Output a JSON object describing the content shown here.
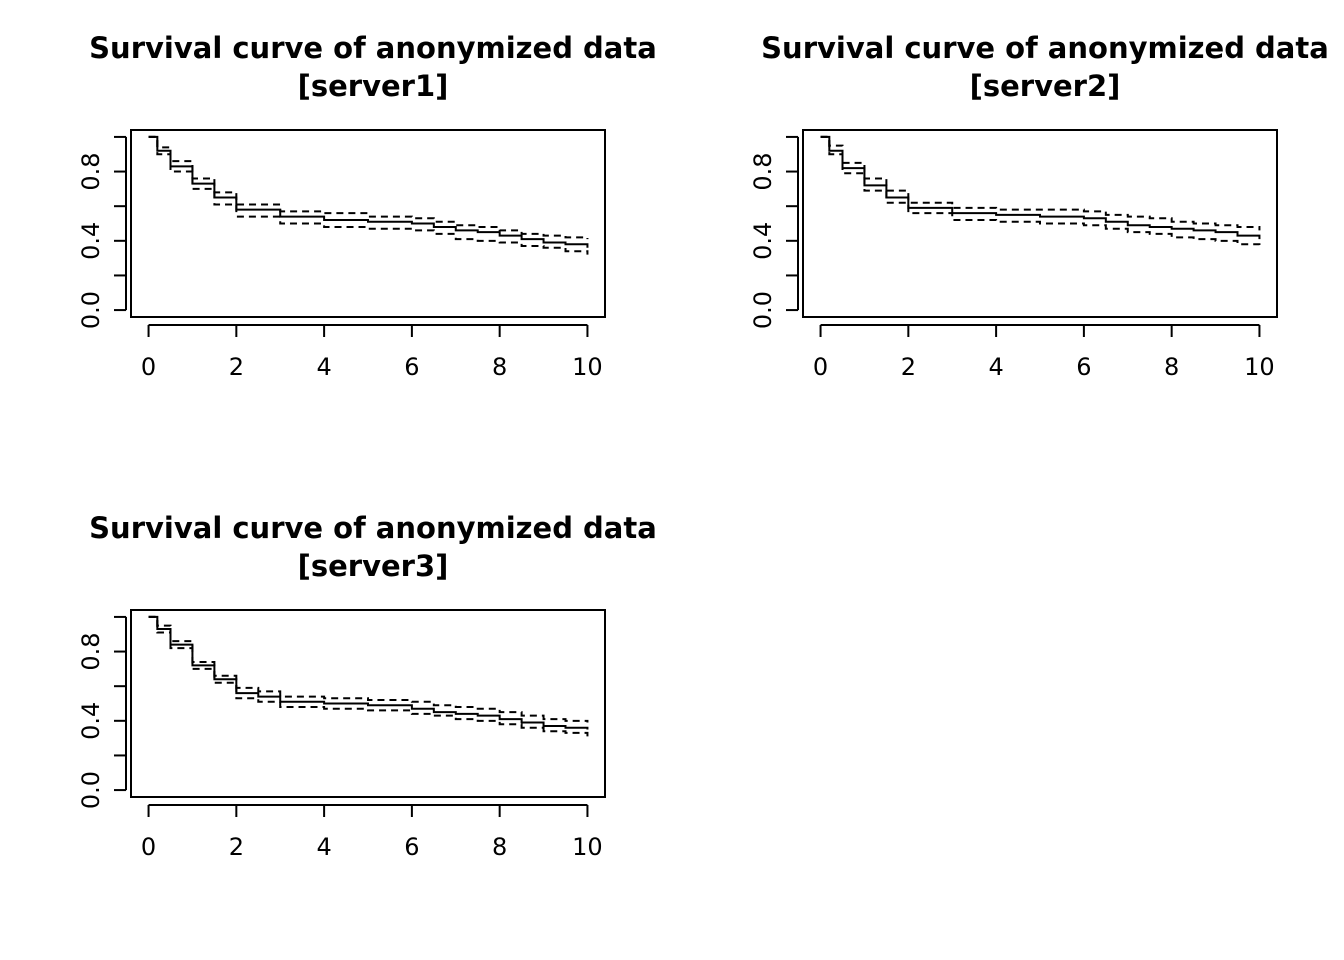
{
  "chart_data": [
    {
      "type": "line",
      "title_line1": "Survival curve of anonymized data",
      "title_line2": "[server1]",
      "xlabel": "",
      "ylabel": "",
      "xlim": [
        -0.4,
        10.4
      ],
      "ylim": [
        -0.04,
        1.04
      ],
      "xticks": [
        "0",
        "2",
        "4",
        "6",
        "8",
        "10"
      ],
      "yticks": [
        "0.0",
        "0.4",
        "0.8"
      ],
      "yticks_unlabeled": [
        0.2,
        0.6,
        1.0
      ],
      "grid": false,
      "x": [
        0,
        0.2,
        0.5,
        1.0,
        1.5,
        2.0,
        3.0,
        4.0,
        5.0,
        6.0,
        6.5,
        7.0,
        7.5,
        8.0,
        8.5,
        9.0,
        9.5,
        10.0
      ],
      "series": [
        {
          "style": "solid",
          "values": [
            1.0,
            0.92,
            0.83,
            0.73,
            0.65,
            0.58,
            0.54,
            0.52,
            0.51,
            0.5,
            0.48,
            0.46,
            0.45,
            0.43,
            0.41,
            0.39,
            0.38,
            0.36
          ]
        },
        {
          "style": "dashed",
          "values": [
            1.0,
            0.94,
            0.86,
            0.76,
            0.68,
            0.61,
            0.57,
            0.56,
            0.54,
            0.53,
            0.51,
            0.49,
            0.48,
            0.46,
            0.44,
            0.43,
            0.42,
            0.41
          ]
        },
        {
          "style": "dashed",
          "values": [
            1.0,
            0.9,
            0.8,
            0.7,
            0.61,
            0.54,
            0.5,
            0.48,
            0.47,
            0.46,
            0.44,
            0.41,
            0.4,
            0.39,
            0.37,
            0.36,
            0.34,
            0.32
          ]
        }
      ]
    },
    {
      "type": "line",
      "title_line1": "Survival curve of anonymized data",
      "title_line2": "[server2]",
      "xlabel": "",
      "ylabel": "",
      "xlim": [
        -0.4,
        10.4
      ],
      "ylim": [
        -0.04,
        1.04
      ],
      "xticks": [
        "0",
        "2",
        "4",
        "6",
        "8",
        "10"
      ],
      "yticks": [
        "0.0",
        "0.4",
        "0.8"
      ],
      "yticks_unlabeled": [
        0.2,
        0.6,
        1.0
      ],
      "grid": false,
      "x": [
        0,
        0.2,
        0.5,
        1.0,
        1.5,
        2.0,
        3.0,
        4.0,
        5.0,
        6.0,
        6.5,
        7.0,
        7.5,
        8.0,
        8.5,
        9.0,
        9.5,
        10.0
      ],
      "series": [
        {
          "style": "solid",
          "values": [
            1.0,
            0.92,
            0.82,
            0.72,
            0.65,
            0.59,
            0.56,
            0.55,
            0.54,
            0.53,
            0.51,
            0.49,
            0.48,
            0.47,
            0.46,
            0.45,
            0.43,
            0.41
          ]
        },
        {
          "style": "dashed",
          "values": [
            1.0,
            0.95,
            0.85,
            0.76,
            0.69,
            0.62,
            0.59,
            0.58,
            0.58,
            0.57,
            0.55,
            0.54,
            0.53,
            0.51,
            0.5,
            0.49,
            0.48,
            0.46
          ]
        },
        {
          "style": "dashed",
          "values": [
            1.0,
            0.9,
            0.79,
            0.69,
            0.62,
            0.56,
            0.52,
            0.51,
            0.5,
            0.49,
            0.47,
            0.45,
            0.44,
            0.42,
            0.41,
            0.4,
            0.38,
            0.36
          ]
        }
      ]
    },
    {
      "type": "line",
      "title_line1": "Survival curve of anonymized data",
      "title_line2": "[server3]",
      "xlabel": "",
      "ylabel": "",
      "xlim": [
        -0.4,
        10.4
      ],
      "ylim": [
        -0.04,
        1.04
      ],
      "xticks": [
        "0",
        "2",
        "4",
        "6",
        "8",
        "10"
      ],
      "yticks": [
        "0.0",
        "0.4",
        "0.8"
      ],
      "yticks_unlabeled": [
        0.2,
        0.6,
        1.0
      ],
      "grid": false,
      "x": [
        0,
        0.2,
        0.5,
        1.0,
        1.5,
        2.0,
        2.5,
        3.0,
        4.0,
        5.0,
        6.0,
        6.5,
        7.0,
        7.5,
        8.0,
        8.5,
        9.0,
        9.5,
        10.0
      ],
      "series": [
        {
          "style": "solid",
          "values": [
            1.0,
            0.93,
            0.84,
            0.72,
            0.64,
            0.56,
            0.54,
            0.51,
            0.5,
            0.49,
            0.47,
            0.45,
            0.44,
            0.43,
            0.41,
            0.39,
            0.37,
            0.36,
            0.35
          ]
        },
        {
          "style": "dashed",
          "values": [
            1.0,
            0.95,
            0.86,
            0.74,
            0.66,
            0.59,
            0.57,
            0.54,
            0.53,
            0.52,
            0.51,
            0.49,
            0.48,
            0.47,
            0.45,
            0.43,
            0.41,
            0.4,
            0.39
          ]
        },
        {
          "style": "dashed",
          "values": [
            1.0,
            0.91,
            0.82,
            0.7,
            0.62,
            0.53,
            0.51,
            0.48,
            0.47,
            0.46,
            0.44,
            0.43,
            0.41,
            0.4,
            0.38,
            0.36,
            0.34,
            0.33,
            0.31
          ]
        }
      ]
    }
  ]
}
